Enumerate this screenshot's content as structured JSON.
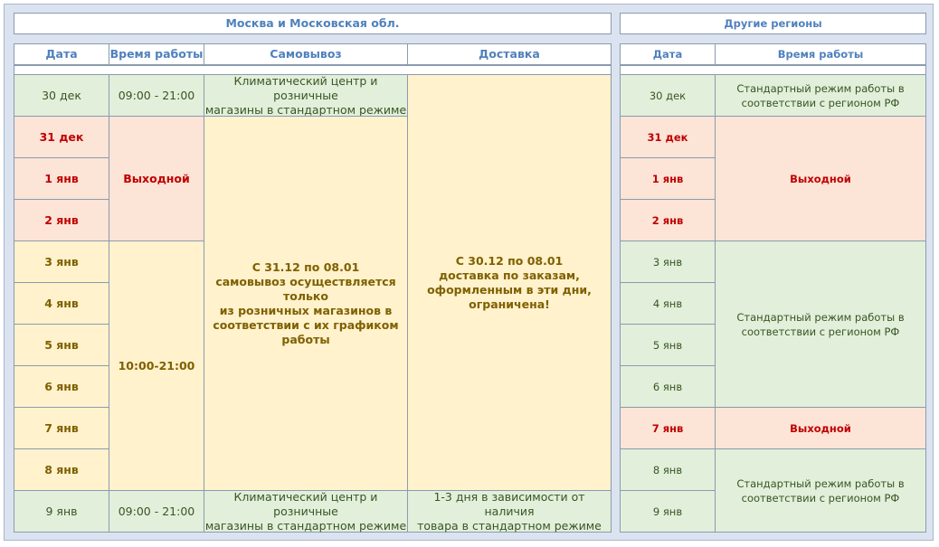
{
  "moscow": {
    "title": "Москва и Московская обл.",
    "headers": [
      "Дата",
      "Время работы",
      "Самовывоз",
      "Доставка"
    ],
    "dates": [
      "30 дек",
      "31 дек",
      "1 янв",
      "2 янв",
      "3 янв",
      "4 янв",
      "5 янв",
      "6 янв",
      "7 янв",
      "8 янв",
      "9 янв"
    ],
    "hours": [
      "09:00 - 21:00",
      "Выходной",
      "10:00-21:00",
      "09:00 - 21:00"
    ],
    "pickup": [
      "Климатический центр и розничные\nмагазины в стандартном режиме",
      "С 31.12 по 08.01\nсамовывоз осуществляется только\nиз розничных магазинов в\nсоответствии с их графиком работы",
      "Климатический центр и розничные\nмагазины в стандартном режиме"
    ],
    "delivery": [
      "С 30.12 по 08.01\nдоставка по заказам,\nоформленным в эти дни,\nограничена!",
      "1-3 дня в зависимости от наличия\nтовара в стандартном режиме"
    ]
  },
  "regions": {
    "title": "Другие регионы",
    "headers": [
      "Дата",
      "Время работы"
    ],
    "dates": [
      "30 дек",
      "31 дек",
      "1 янв",
      "2 янв",
      "3 янв",
      "4 янв",
      "5 янв",
      "6 янв",
      "7 янв",
      "8 янв",
      "9 янв"
    ],
    "hours": [
      "Стандартный режим работы в\nсоответствии с регионом РФ",
      "Выходной",
      "Стандартный режим работы в\nсоответствии с регионом РФ",
      "Выходной",
      "Стандартный режим работы в\nсоответствии с регионом РФ"
    ]
  }
}
